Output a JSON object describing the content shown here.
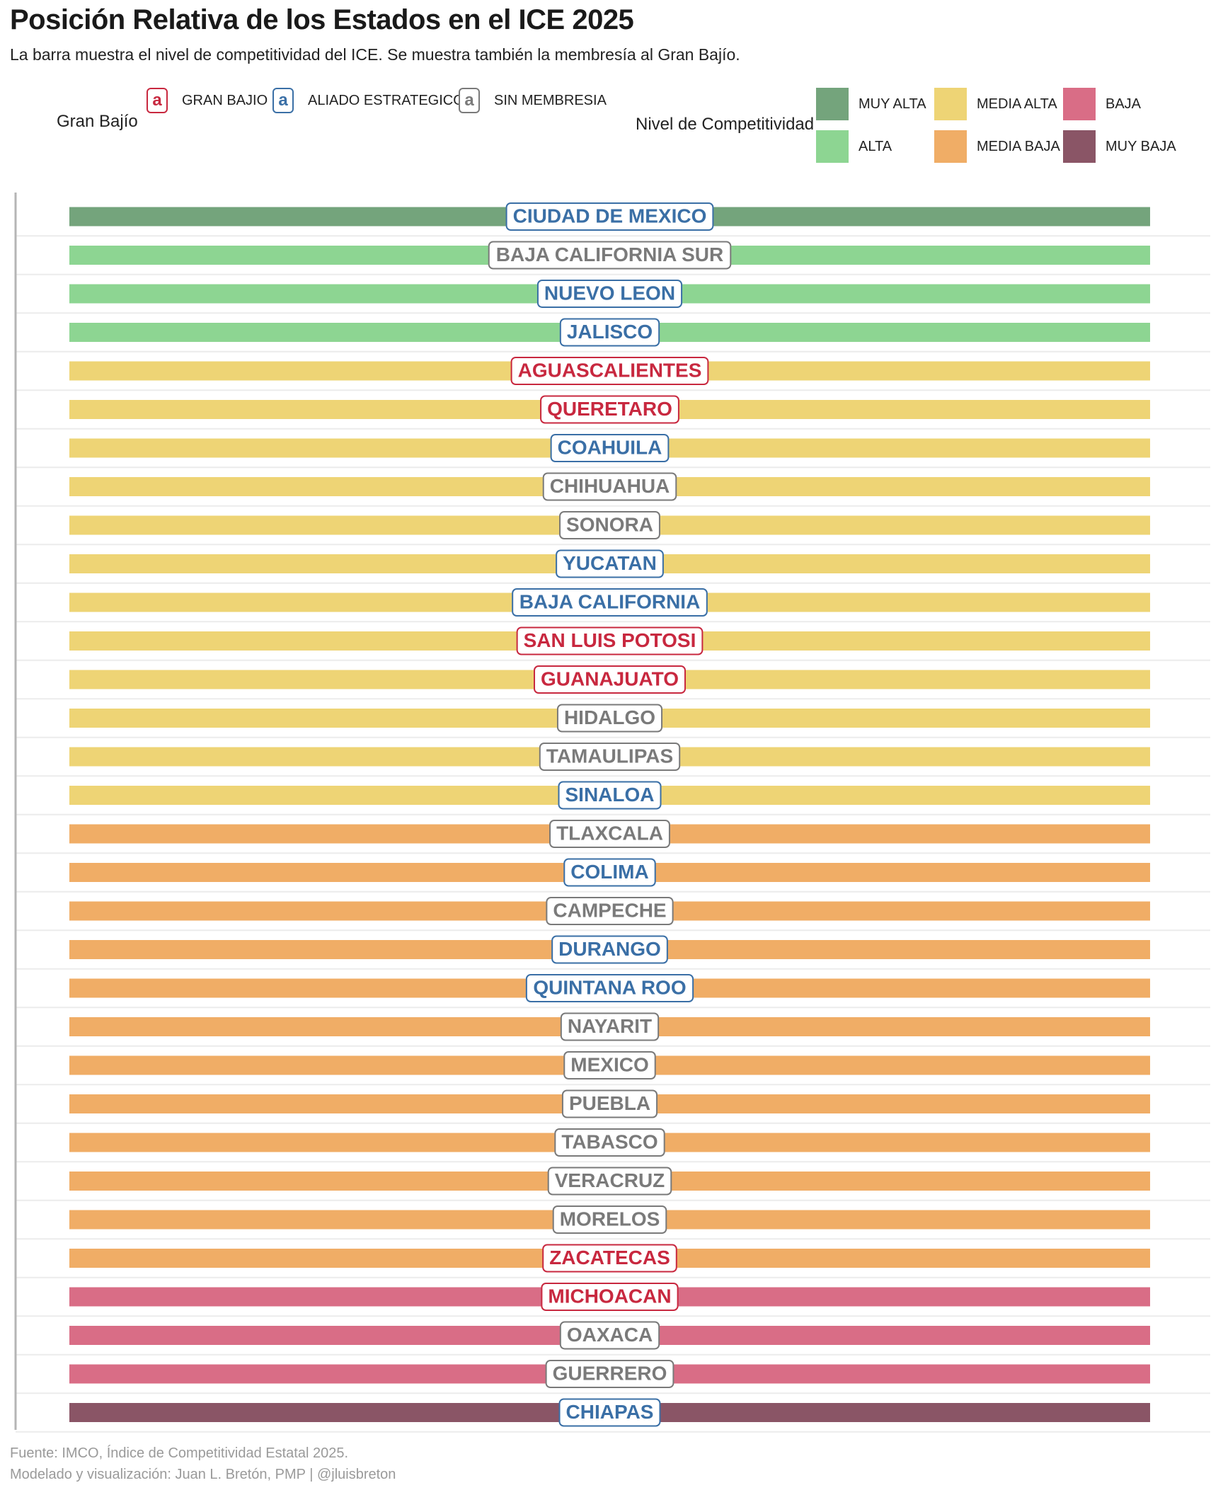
{
  "title": "Posición Relativa de los Estados en el ICE 2025",
  "subtitle": "La barra muestra el nivel de competitividad del ICE. Se muestra también la membresía al Gran Bajío.",
  "legend_membership": {
    "title": "Gran Bajío",
    "key_glyph": "a",
    "items": [
      {
        "label": "GRAN BAJIO",
        "color": "#c8283f"
      },
      {
        "label": "ALIADO ESTRATEGICO",
        "color": "#3a6fa6"
      },
      {
        "label": "SIN MEMBRESIA",
        "color": "#7a7a7a"
      }
    ]
  },
  "legend_level": {
    "title": "Nivel de Competitividad",
    "items": [
      {
        "label": "MUY ALTA",
        "color": "#74a47c"
      },
      {
        "label": "ALTA",
        "color": "#8dd592"
      },
      {
        "label": "MEDIA ALTA",
        "color": "#eed475"
      },
      {
        "label": "MEDIA BAJA",
        "color": "#f0ad66"
      },
      {
        "label": "BAJA",
        "color": "#d96d86"
      },
      {
        "label": "MUY BAJA",
        "color": "#8a5566"
      }
    ]
  },
  "chart_data": {
    "type": "bar",
    "orientation": "horizontal",
    "grid": true,
    "categories": [
      "CIUDAD DE MEXICO",
      "BAJA CALIFORNIA SUR",
      "NUEVO LEON",
      "JALISCO",
      "AGUASCALIENTES",
      "QUERETARO",
      "COAHUILA",
      "CHIHUAHUA",
      "SONORA",
      "YUCATAN",
      "BAJA CALIFORNIA",
      "SAN LUIS POTOSI",
      "GUANAJUATO",
      "HIDALGO",
      "TAMAULIPAS",
      "SINALOA",
      "TLAXCALA",
      "COLIMA",
      "CAMPECHE",
      "DURANGO",
      "QUINTANA ROO",
      "NAYARIT",
      "MEXICO",
      "PUEBLA",
      "TABASCO",
      "VERACRUZ",
      "MORELOS",
      "ZACATECAS",
      "MICHOACAN",
      "OAXACA",
      "GUERRERO",
      "CHIAPAS"
    ],
    "level": [
      "MUY ALTA",
      "ALTA",
      "ALTA",
      "ALTA",
      "MEDIA ALTA",
      "MEDIA ALTA",
      "MEDIA ALTA",
      "MEDIA ALTA",
      "MEDIA ALTA",
      "MEDIA ALTA",
      "MEDIA ALTA",
      "MEDIA ALTA",
      "MEDIA ALTA",
      "MEDIA ALTA",
      "MEDIA ALTA",
      "MEDIA ALTA",
      "MEDIA BAJA",
      "MEDIA BAJA",
      "MEDIA BAJA",
      "MEDIA BAJA",
      "MEDIA BAJA",
      "MEDIA BAJA",
      "MEDIA BAJA",
      "MEDIA BAJA",
      "MEDIA BAJA",
      "MEDIA BAJA",
      "MEDIA BAJA",
      "MEDIA BAJA",
      "BAJA",
      "BAJA",
      "BAJA",
      "MUY BAJA"
    ],
    "membership": [
      "ALIADO ESTRATEGICO",
      "SIN MEMBRESIA",
      "ALIADO ESTRATEGICO",
      "ALIADO ESTRATEGICO",
      "GRAN BAJIO",
      "GRAN BAJIO",
      "ALIADO ESTRATEGICO",
      "SIN MEMBRESIA",
      "SIN MEMBRESIA",
      "ALIADO ESTRATEGICO",
      "ALIADO ESTRATEGICO",
      "GRAN BAJIO",
      "GRAN BAJIO",
      "SIN MEMBRESIA",
      "SIN MEMBRESIA",
      "ALIADO ESTRATEGICO",
      "SIN MEMBRESIA",
      "ALIADO ESTRATEGICO",
      "SIN MEMBRESIA",
      "ALIADO ESTRATEGICO",
      "ALIADO ESTRATEGICO",
      "SIN MEMBRESIA",
      "SIN MEMBRESIA",
      "SIN MEMBRESIA",
      "SIN MEMBRESIA",
      "SIN MEMBRESIA",
      "SIN MEMBRESIA",
      "GRAN BAJIO",
      "GRAN BAJIO",
      "SIN MEMBRESIA",
      "SIN MEMBRESIA",
      "ALIADO ESTRATEGICO"
    ]
  },
  "caption": {
    "source": "Fuente: IMCO, Índice de Competitividad Estatal 2025.",
    "credit": "Modelado y visualización: Juan L. Bretón, PMP | @jluisbreton"
  }
}
